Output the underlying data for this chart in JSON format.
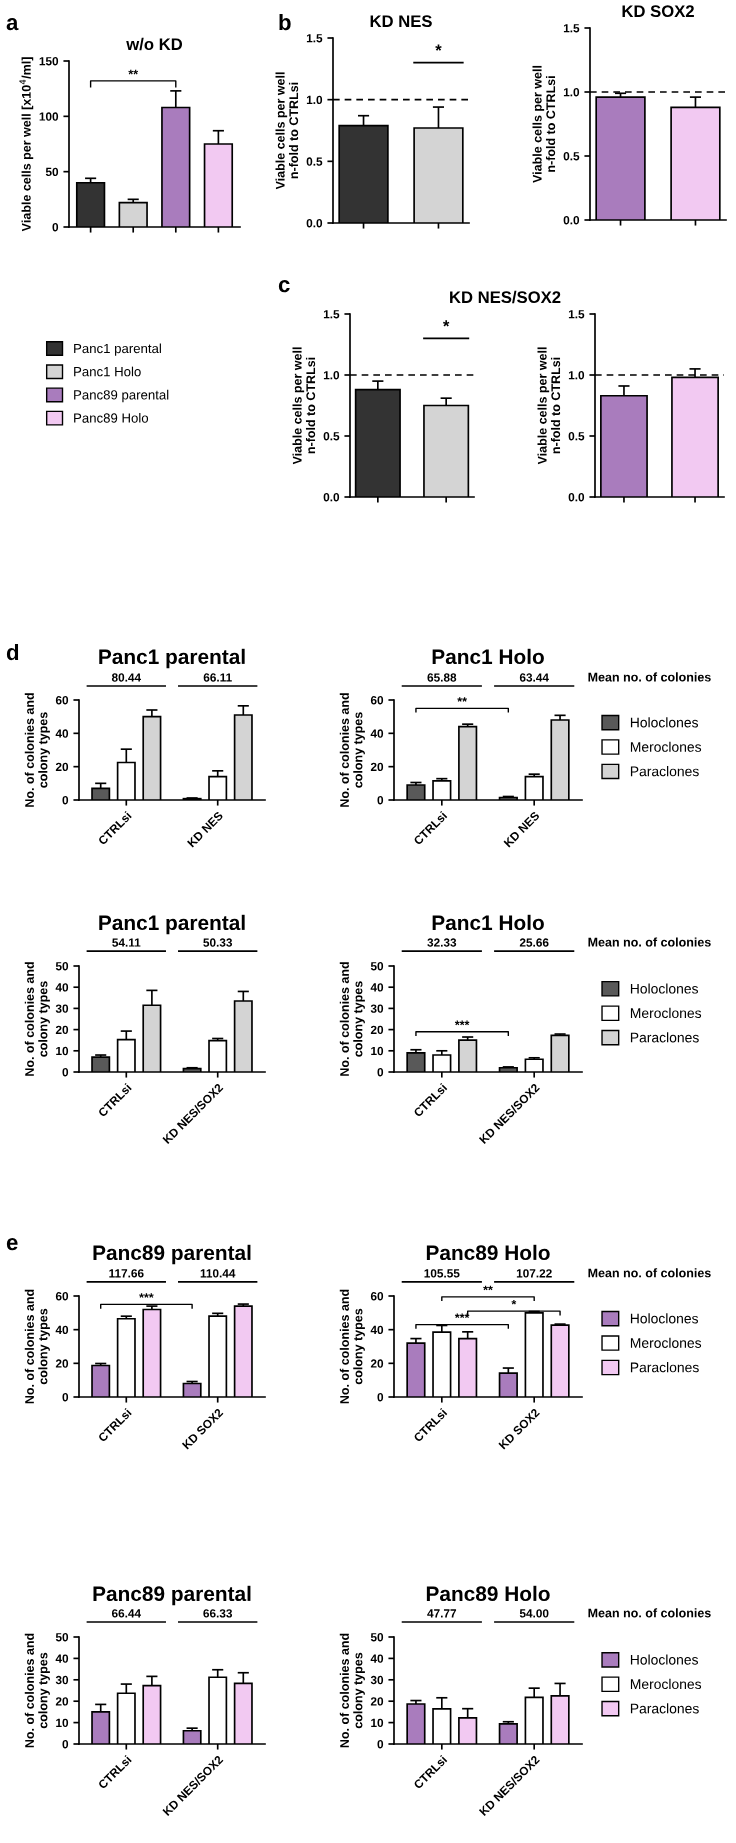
{
  "chart_data": [
    {
      "type": "bar",
      "title": "w/o KD",
      "ylabel": "Viable cells per well [x10$^{4}$/ml]",
      "categories": [
        null,
        null,
        null,
        null
      ],
      "stacked": true,
      "legend": "bottom left",
      "ylim": [
        0,
        150
      ],
      "yticks": [
        0,
        50,
        100,
        150
      ],
      "annotations": [
        "a",
        "**"
      ],
      "series": [
        {
          "name": "Panc1 parental",
          "color": "#333333",
          "values": [
            40,
            null,
            null,
            null
          ],
          "errors": [
            4,
            null,
            null,
            null
          ]
        },
        {
          "name": "Panc1 Holo",
          "color": "#d4d4d4",
          "values": [
            null,
            22,
            null,
            null
          ],
          "errors": [
            null,
            3,
            null,
            null
          ]
        },
        {
          "name": "Panc89 parental",
          "color": "#a97cbd",
          "values": [
            null,
            null,
            108,
            null
          ],
          "errors": [
            null,
            null,
            15,
            null
          ]
        },
        {
          "name": "Panc89 Holo",
          "color": "#f2c9f2",
          "values": [
            null,
            null,
            null,
            75
          ],
          "errors": [
            null,
            null,
            null,
            12
          ]
        }
      ]
    },
    {
      "type": "bar",
      "title": "KD NES",
      "ylabel": "Viable cells per well\nn-fold to CTRLsi",
      "categories": [
        null,
        null
      ],
      "values": [
        0.79,
        0.77
      ],
      "errors": [
        0.08,
        0.17
      ],
      "colors": [
        "#333333",
        "#d4d4d4"
      ],
      "ylim": [
        0,
        1.5
      ],
      "yticks": [
        {
          "value": 0,
          "label": "0.0"
        },
        {
          "value": 0.5,
          "label": "0.5"
        },
        {
          "value": 1,
          "label": "1.0"
        },
        {
          "value": 1.5,
          "label": "1.5"
        }
      ],
      "ref_lines": [
        {
          "axis": "y",
          "value": 1,
          "line_style": "dashed",
          "color": "#000000"
        }
      ],
      "annotations": [
        "b",
        "*"
      ]
    },
    {
      "type": "bar",
      "title": "KD SOX2",
      "ylabel": "Viable cells per well\nn-fold to CTRLsi",
      "categories": [
        null,
        null
      ],
      "values": [
        0.96,
        0.88
      ],
      "errors": [
        0.03,
        0.08
      ],
      "colors": [
        "#a97cbd",
        "#f2c9f2"
      ],
      "ylim": [
        0,
        1.5
      ],
      "yticks": [
        {
          "value": 0,
          "label": "0.0"
        },
        {
          "value": 0.5,
          "label": "0.5"
        },
        {
          "value": 1,
          "label": "1.0"
        },
        {
          "value": 1.5,
          "label": "1.5"
        }
      ],
      "ref_lines": [
        {
          "axis": "y",
          "value": 1,
          "line_style": "dashed",
          "color": "#000000"
        }
      ]
    },
    {
      "type": "bar",
      "title": "KD NES/SOX2",
      "ylabel": "Viable cells per well\nn-fold to CTRLsi",
      "categories": [
        null,
        null
      ],
      "values": [
        0.88,
        0.75
      ],
      "errors": [
        0.07,
        0.06
      ],
      "colors": [
        "#333333",
        "#d4d4d4"
      ],
      "ylim": [
        0,
        1.5
      ],
      "yticks": [
        {
          "value": 0,
          "label": "0.0"
        },
        {
          "value": 0.5,
          "label": "0.5"
        },
        {
          "value": 1,
          "label": "1.0"
        },
        {
          "value": 1.5,
          "label": "1.5"
        }
      ],
      "ref_lines": [
        {
          "axis": "y",
          "value": 1,
          "line_style": "dashed",
          "color": "#000000"
        }
      ],
      "annotations": [
        "c",
        "*"
      ]
    },
    {
      "type": "bar",
      "ylabel": "Viable cells per well\nn-fold to CTRLsi",
      "categories": [
        null,
        null
      ],
      "values": [
        0.83,
        0.98
      ],
      "errors": [
        0.08,
        0.07
      ],
      "colors": [
        "#a97cbd",
        "#f2c9f2"
      ],
      "ylim": [
        0,
        1.5
      ],
      "yticks": [
        {
          "value": 0,
          "label": "0.0"
        },
        {
          "value": 0.5,
          "label": "0.5"
        },
        {
          "value": 1,
          "label": "1.0"
        },
        {
          "value": 1.5,
          "label": "1.5"
        }
      ],
      "ref_lines": [
        {
          "axis": "y",
          "value": 1,
          "line_style": "dashed",
          "color": "#000000"
        }
      ]
    },
    {
      "type": "bar",
      "title": "Panc1 parental",
      "ylabel": "No. of colonies and\ncolony types",
      "categories": [
        "CTRLsi",
        "KD NES"
      ],
      "ylim": [
        0,
        60
      ],
      "yticks": [
        0,
        20,
        40,
        60
      ],
      "annotations": [
        "d",
        "80.44",
        "66.11"
      ],
      "series": [
        {
          "color": "#595959",
          "values": [
            7,
            0.8
          ],
          "errors": [
            3,
            0.4
          ]
        },
        {
          "color": "#ffffff",
          "values": [
            22.5,
            14
          ],
          "errors": [
            8,
            3.5
          ]
        },
        {
          "color": "#d4d4d4",
          "values": [
            50,
            51
          ],
          "errors": [
            4,
            5.5
          ]
        }
      ]
    },
    {
      "type": "bar",
      "title": "Panc1 Holo",
      "ylabel": "No. of colonies and\ncolony types",
      "categories": [
        "CTRLsi",
        "KD NES"
      ],
      "ylim": [
        0,
        60
      ],
      "yticks": [
        0,
        20,
        40,
        60
      ],
      "legend": "right",
      "annotations": [
        "65.88",
        "63.44",
        "Mean no. of colonies",
        "**"
      ],
      "series": [
        {
          "name": "Holoclones",
          "color": "#595959",
          "values": [
            9,
            1.5
          ],
          "errors": [
            1.5,
            0.6
          ]
        },
        {
          "name": "Meroclones",
          "color": "#ffffff",
          "values": [
            11.5,
            14
          ],
          "errors": [
            1.3,
            1.5
          ]
        },
        {
          "name": "Paraclones",
          "color": "#d4d4d4",
          "values": [
            44,
            48
          ],
          "errors": [
            1.5,
            2.8
          ]
        }
      ]
    },
    {
      "type": "bar",
      "title": "Panc1 parental",
      "ylabel": "No. of colonies and\ncolony types",
      "categories": [
        "CTRLsi",
        "KD NES/SOX2"
      ],
      "ylim": [
        0,
        50
      ],
      "yticks": [
        0,
        10,
        20,
        30,
        40,
        50
      ],
      "annotations": [
        "54.11",
        "50.33"
      ],
      "series": [
        {
          "color": "#595959",
          "values": [
            7,
            1.6
          ],
          "errors": [
            1,
            0.4
          ]
        },
        {
          "color": "#ffffff",
          "values": [
            15.3,
            14.8
          ],
          "errors": [
            4,
            1
          ]
        },
        {
          "color": "#d4d4d4",
          "values": [
            31.5,
            33.5
          ],
          "errors": [
            7,
            4.5
          ]
        }
      ]
    },
    {
      "type": "bar",
      "title": "Panc1 Holo",
      "ylabel": "No. of colonies and\ncolony types",
      "categories": [
        "CTRLsi",
        "KD NES/SOX2"
      ],
      "ylim": [
        0,
        50
      ],
      "yticks": [
        0,
        10,
        20,
        30,
        40,
        50
      ],
      "legend": "right",
      "annotations": [
        "32.33",
        "25.66",
        "Mean no. of colonies",
        "***"
      ],
      "series": [
        {
          "name": "Holoclones",
          "color": "#595959",
          "values": [
            9,
            2
          ],
          "errors": [
            1.5,
            0.4
          ]
        },
        {
          "name": "Meroclones",
          "color": "#ffffff",
          "values": [
            8,
            6
          ],
          "errors": [
            2,
            0.7
          ]
        },
        {
          "name": "Paraclones",
          "color": "#d4d4d4",
          "values": [
            15,
            17.3
          ],
          "errors": [
            1.5,
            0.6
          ]
        }
      ]
    },
    {
      "type": "bar",
      "title": "Panc89 parental",
      "ylabel": "No. of colonies and\ncolony types",
      "categories": [
        "CTRLsi",
        "KD SOX2"
      ],
      "ylim": [
        0,
        60
      ],
      "yticks": [
        0,
        20,
        40,
        60
      ],
      "annotations": [
        "e",
        "117.66",
        "110.44",
        "***"
      ],
      "series": [
        {
          "color": "#a97cbd",
          "values": [
            18.7,
            8
          ],
          "errors": [
            1.2,
            1.2
          ]
        },
        {
          "color": "#ffffff",
          "values": [
            46.5,
            48
          ],
          "errors": [
            1.5,
            1.7
          ]
        },
        {
          "color": "#f2c9f2",
          "values": [
            52,
            54
          ],
          "errors": [
            2,
            1.2
          ]
        }
      ]
    },
    {
      "type": "bar",
      "title": "Panc89 Holo",
      "ylabel": "No. of colonies and\ncolony types",
      "categories": [
        "CTRLsi",
        "KD SOX2"
      ],
      "ylim": [
        0,
        60
      ],
      "yticks": [
        0,
        20,
        40,
        60
      ],
      "legend": "right",
      "annotations": [
        "105.55",
        "107.22",
        "Mean no. of colonies",
        "***",
        "**",
        "*"
      ],
      "series": [
        {
          "name": "Holoclones",
          "color": "#a97cbd",
          "values": [
            32,
            14.2
          ],
          "errors": [
            2.7,
            3
          ]
        },
        {
          "name": "Meroclones",
          "color": "#ffffff",
          "values": [
            38.5,
            50
          ],
          "errors": [
            4,
            0.8
          ]
        },
        {
          "name": "Paraclones",
          "color": "#f2c9f2",
          "values": [
            34.7,
            42.7
          ],
          "errors": [
            4,
            0.6
          ]
        }
      ]
    },
    {
      "type": "bar",
      "title": "Panc89 parental",
      "ylabel": "No. of colonies and\ncolony types",
      "categories": [
        "CTRLsi",
        "KD NES/SOX2"
      ],
      "ylim": [
        0,
        50
      ],
      "yticks": [
        0,
        10,
        20,
        30,
        40,
        50
      ],
      "annotations": [
        "66.44",
        "66.33"
      ],
      "series": [
        {
          "color": "#a97cbd",
          "values": [
            15,
            6.2
          ],
          "errors": [
            3.5,
            1.2
          ]
        },
        {
          "color": "#ffffff",
          "values": [
            23.7,
            31.2
          ],
          "errors": [
            4.3,
            3.5
          ]
        },
        {
          "color": "#f2c9f2",
          "values": [
            27.3,
            28.3
          ],
          "errors": [
            4.3,
            5
          ]
        }
      ]
    },
    {
      "type": "bar",
      "title": "Panc89 Holo",
      "ylabel": "No. of colonies and\ncolony types",
      "categories": [
        "CTRLsi",
        "KD NES/SOX2"
      ],
      "ylim": [
        0,
        50
      ],
      "yticks": [
        0,
        10,
        20,
        30,
        40,
        50
      ],
      "legend": "right",
      "annotations": [
        "47.77",
        "54.00",
        "Mean no. of colonies"
      ],
      "series": [
        {
          "name": "Holoclones",
          "color": "#a97cbd",
          "values": [
            18.7,
            9.4
          ],
          "errors": [
            1.6,
            1
          ]
        },
        {
          "name": "Meroclones",
          "color": "#ffffff",
          "values": [
            16.4,
            21.8
          ],
          "errors": [
            5.2,
            4.3
          ]
        },
        {
          "name": "Paraclones",
          "color": "#f2c9f2",
          "values": [
            12.2,
            22.5
          ],
          "errors": [
            4.3,
            5.8
          ]
        }
      ]
    }
  ]
}
